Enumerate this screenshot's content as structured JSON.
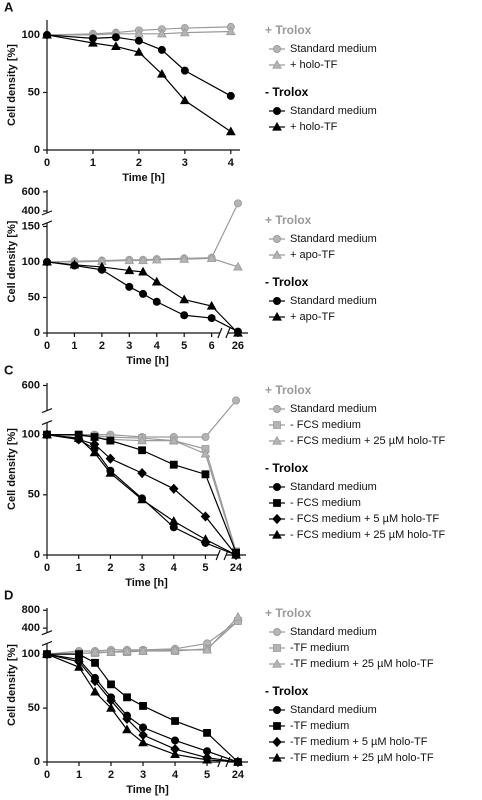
{
  "chart_data": [
    {
      "type": "line",
      "panel": "A",
      "y_label": "Cell density [%]",
      "x_label": "Time [h]",
      "x": [
        0,
        1,
        1.5,
        2,
        2.5,
        3,
        4
      ],
      "x_segments": [
        {
          "xlim": [
            0,
            4.2
          ],
          "xticks": [
            0,
            1,
            2,
            3,
            4
          ]
        }
      ],
      "y_segments": [
        {
          "ylim": [
            0,
            113
          ],
          "yticks": [
            0,
            50,
            100
          ]
        }
      ],
      "series_groups": [
        {
          "name": "+ Trolox",
          "color": "#9a9a9a",
          "series": [
            {
              "name": "Standard medium",
              "marker": "circle",
              "values": [
                100,
                101,
                102,
                104,
                105,
                106,
                107
              ]
            },
            {
              "name": "+ holo-TF",
              "marker": "triangle",
              "values": [
                100,
                100,
                101,
                101,
                101,
                102,
                103
              ]
            }
          ]
        },
        {
          "name": "- Trolox",
          "color": "#000000",
          "series": [
            {
              "name": "Standard medium",
              "marker": "circle",
              "values": [
                100,
                97,
                98,
                95,
                87,
                69,
                47
              ]
            },
            {
              "name": "+ holo-TF",
              "marker": "triangle",
              "values": [
                100,
                93,
                90,
                85,
                66,
                43,
                16
              ]
            }
          ]
        }
      ]
    },
    {
      "type": "line",
      "panel": "B",
      "y_label": "Cell density [%]",
      "x_label": "Time [h]",
      "x": [
        0,
        1,
        2,
        3,
        3.5,
        4,
        5,
        6,
        26
      ],
      "x_segments": [
        {
          "xlim": [
            0,
            6.3
          ],
          "xticks": [
            0,
            1,
            2,
            3,
            4,
            5,
            6
          ]
        },
        {
          "xlim": [
            25.5,
            26.5
          ],
          "xticks": [
            26
          ]
        }
      ],
      "y_segments": [
        {
          "ylim": [
            0,
            155
          ],
          "yticks": [
            0,
            50,
            100,
            150
          ]
        },
        {
          "ylim": [
            380,
            620
          ],
          "yticks": [
            400,
            600
          ]
        }
      ],
      "series_groups": [
        {
          "name": "+ Trolox",
          "color": "#9a9a9a",
          "series": [
            {
              "name": "Standard medium",
              "marker": "circle",
              "values": [
                100,
                101,
                102,
                103,
                103,
                104,
                105,
                106,
                480
              ]
            },
            {
              "name": "+ apo-TF",
              "marker": "triangle",
              "values": [
                100,
                100,
                101,
                102,
                102,
                103,
                104,
                105,
                93
              ]
            }
          ]
        },
        {
          "name": "- Trolox",
          "color": "#000000",
          "series": [
            {
              "name": "Standard medium",
              "marker": "circle",
              "values": [
                100,
                95,
                89,
                65,
                55,
                44,
                25,
                21,
                2
              ]
            },
            {
              "name": "+ apo-TF",
              "marker": "triangle",
              "values": [
                100,
                96,
                93,
                88,
                86,
                72,
                47,
                38,
                0
              ]
            }
          ]
        }
      ]
    },
    {
      "type": "line",
      "panel": "C",
      "y_label": "Cell density [%]",
      "x_label": "Time [h]",
      "x": [
        0,
        1,
        1.5,
        2,
        3,
        4,
        5,
        24
      ],
      "x_segments": [
        {
          "xlim": [
            0,
            5.4
          ],
          "xticks": [
            0,
            1,
            2,
            3,
            4,
            5
          ]
        },
        {
          "xlim": [
            23.5,
            24.5
          ],
          "xticks": [
            24
          ]
        }
      ],
      "y_segments": [
        {
          "ylim": [
            0,
            110
          ],
          "yticks": [
            0,
            50,
            100
          ]
        },
        {
          "ylim": [
            400,
            620
          ],
          "yticks": [
            600
          ]
        }
      ],
      "series_groups": [
        {
          "name": "+ Trolox",
          "color": "#9a9a9a",
          "series": [
            {
              "name": "Standard medium",
              "marker": "circle",
              "values": [
                100,
                100,
                100,
                100,
                98,
                98,
                98,
                480
              ]
            },
            {
              "name": "- FCS medium",
              "marker": "square",
              "values": [
                100,
                100,
                99,
                98,
                97,
                95,
                88,
                3
              ]
            },
            {
              "name": "- FCS medium + 25 µM holo-TF",
              "marker": "triangle",
              "values": [
                100,
                99,
                98,
                96,
                95,
                95,
                84,
                2
              ]
            }
          ]
        },
        {
          "name": "- Trolox",
          "color": "#000000",
          "series": [
            {
              "name": "Standard medium",
              "marker": "circle",
              "values": [
                100,
                96,
                88,
                70,
                47,
                23,
                10,
                0
              ]
            },
            {
              "name": "- FCS medium",
              "marker": "square",
              "values": [
                100,
                100,
                98,
                95,
                87,
                75,
                67,
                2
              ]
            },
            {
              "name": "- FCS medium + 5 µM holo-TF",
              "marker": "diamond",
              "values": [
                100,
                96,
                92,
                80,
                68,
                55,
                32,
                0
              ]
            },
            {
              "name": "- FCS medium + 25 µM holo-TF",
              "marker": "triangle",
              "values": [
                100,
                97,
                85,
                68,
                46,
                28,
                13,
                0
              ]
            }
          ]
        }
      ]
    },
    {
      "type": "line",
      "panel": "D",
      "y_label": "Cell density [%]",
      "x_label": "Time [h]",
      "x": [
        0,
        1,
        1.5,
        2,
        2.5,
        3,
        4,
        5,
        24
      ],
      "x_segments": [
        {
          "xlim": [
            0,
            5.4
          ],
          "xticks": [
            0,
            1,
            2,
            3,
            4,
            5
          ]
        },
        {
          "xlim": [
            23.5,
            24.5
          ],
          "xticks": [
            24
          ]
        }
      ],
      "y_segments": [
        {
          "ylim": [
            0,
            110
          ],
          "yticks": [
            0,
            50,
            100
          ]
        },
        {
          "ylim": [
            300,
            850
          ],
          "yticks": [
            400,
            800
          ]
        }
      ],
      "series_groups": [
        {
          "name": "+ Trolox",
          "color": "#9a9a9a",
          "series": [
            {
              "name": "Standard medium",
              "marker": "circle",
              "values": [
                100,
                103,
                103,
                104,
                104,
                104,
                105,
                110,
                560
              ]
            },
            {
              "name": "-TF medium",
              "marker": "square",
              "values": [
                100,
                101,
                101,
                102,
                102,
                103,
                103,
                105,
                560
              ]
            },
            {
              "name": "-TF medium + 25 µM holo-TF",
              "marker": "triangle",
              "values": [
                100,
                100,
                102,
                102,
                103,
                103,
                104,
                104,
                650
              ]
            }
          ]
        },
        {
          "name": "- Trolox",
          "color": "#000000",
          "series": [
            {
              "name": "Standard medium",
              "marker": "circle",
              "values": [
                100,
                95,
                78,
                60,
                43,
                32,
                20,
                10,
                0
              ]
            },
            {
              "name": "-TF medium",
              "marker": "square",
              "values": [
                100,
                100,
                92,
                72,
                60,
                52,
                38,
                27,
                0
              ]
            },
            {
              "name": "-TF medium + 5 µM holo-TF",
              "marker": "diamond",
              "values": [
                100,
                93,
                75,
                57,
                40,
                25,
                12,
                4,
                0
              ]
            },
            {
              "name": "-TF medium + 25 µM holo-TF",
              "marker": "triangle",
              "values": [
                100,
                88,
                65,
                50,
                30,
                18,
                7,
                2,
                0
              ]
            }
          ]
        }
      ]
    }
  ]
}
